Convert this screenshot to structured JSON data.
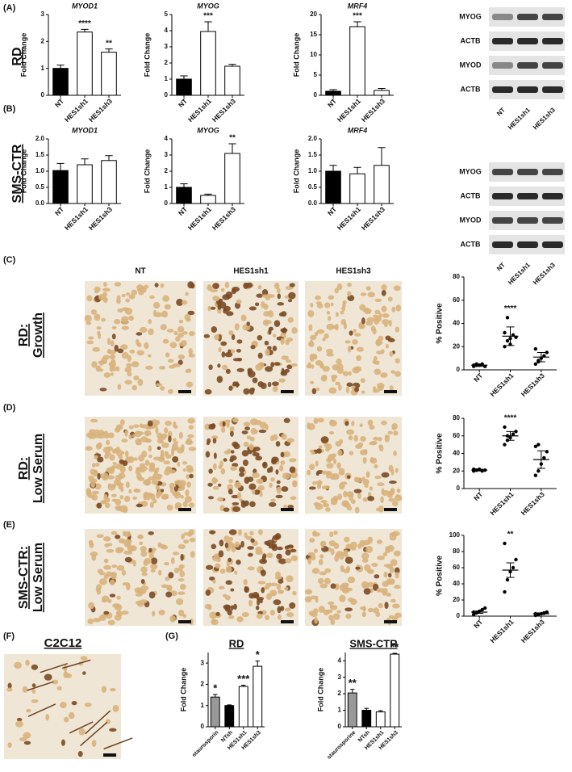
{
  "panel_labels": [
    "(A)",
    "(B)",
    "(C)",
    "(D)",
    "(E)",
    "(F)",
    "(G)"
  ],
  "row_labels": [
    [
      "RD"
    ],
    [
      "SMS-CTR"
    ],
    [
      "RD:",
      "Growth"
    ],
    [
      "RD:",
      "Low Serum"
    ],
    [
      "SMS-CTR:",
      "Low Serum"
    ],
    [
      "C2C12"
    ]
  ],
  "column_headers": [
    "NT",
    "HES1sh1",
    "HES1sh3"
  ],
  "blots": [
    {
      "labels": [
        "MYOG",
        "ACTB",
        "MYOD",
        "ACTB"
      ],
      "lanes": [
        "NT",
        "HES1sh1",
        "HES1sh3"
      ]
    },
    {
      "labels": [
        "MYOG",
        "ACTB",
        "MYOD",
        "ACTB"
      ],
      "lanes": [
        "NT",
        "HES1sh1",
        "HES1sh3"
      ]
    }
  ],
  "chart_data": [
    {
      "type": "bar",
      "title": "MYOD1",
      "ylabel": "Fold Change",
      "categories": [
        "NT",
        "HES1sh1",
        "HES1sh3"
      ],
      "values": [
        1.0,
        2.35,
        1.6
      ],
      "errors": [
        0.12,
        0.1,
        0.12
      ],
      "annotations": [
        null,
        "****",
        "**"
      ],
      "colors": [
        "#000000",
        "#ffffff",
        "#ffffff"
      ],
      "ylim": [
        0,
        3
      ],
      "yticks": [
        0,
        1,
        2,
        3
      ]
    },
    {
      "type": "bar",
      "title": "MYOG",
      "ylabel": "Fold Change",
      "categories": [
        "NT",
        "HES1sh1",
        "HES1sh3"
      ],
      "values": [
        1.0,
        3.95,
        1.8
      ],
      "errors": [
        0.2,
        0.6,
        0.12
      ],
      "annotations": [
        null,
        "***",
        null
      ],
      "colors": [
        "#000000",
        "#ffffff",
        "#ffffff"
      ],
      "ylim": [
        0,
        5
      ],
      "yticks": [
        0,
        1,
        2,
        3,
        4,
        5
      ]
    },
    {
      "type": "bar",
      "title": "MRF4",
      "ylabel": "Fold Change",
      "categories": [
        "NT",
        "HES1sh1",
        "HES1sh3"
      ],
      "values": [
        1.0,
        17,
        1.2
      ],
      "errors": [
        0.4,
        1.2,
        0.5
      ],
      "annotations": [
        null,
        "***",
        null
      ],
      "colors": [
        "#000000",
        "#ffffff",
        "#ffffff"
      ],
      "ylim": [
        0,
        20
      ],
      "yticks": [
        0,
        5,
        10,
        15,
        20
      ]
    },
    {
      "type": "bar",
      "title": "MYOD1",
      "ylabel": "Fold Change",
      "categories": [
        "NT",
        "HES1sh1",
        "HES1sh3"
      ],
      "values": [
        1.02,
        1.2,
        1.33
      ],
      "errors": [
        0.22,
        0.18,
        0.15
      ],
      "annotations": [
        null,
        null,
        null
      ],
      "colors": [
        "#000000",
        "#ffffff",
        "#ffffff"
      ],
      "ylim": [
        0,
        2
      ],
      "yticks": [
        {
          "value": 0,
          "label": "0.0"
        },
        {
          "value": 0.5,
          "label": "0.5"
        },
        {
          "value": 1,
          "label": "1.0"
        },
        {
          "value": 1.5,
          "label": "1.5"
        },
        {
          "value": 2,
          "label": "2.0"
        }
      ]
    },
    {
      "type": "bar",
      "title": "MYOG",
      "ylabel": "Fold Change",
      "categories": [
        "NT",
        "HES1sh1",
        "HES1sh3"
      ],
      "values": [
        1.0,
        0.5,
        3.1
      ],
      "errors": [
        0.22,
        0.08,
        0.6
      ],
      "annotations": [
        null,
        null,
        "**"
      ],
      "colors": [
        "#000000",
        "#ffffff",
        "#ffffff"
      ],
      "ylim": [
        0,
        4
      ],
      "yticks": [
        0,
        1,
        2,
        3,
        4
      ]
    },
    {
      "type": "bar",
      "title": "MRF4",
      "ylabel": "Fold Change",
      "categories": [
        "NT",
        "HES1sh1",
        "HES1sh3"
      ],
      "values": [
        1.0,
        0.92,
        1.18
      ],
      "errors": [
        0.18,
        0.2,
        0.55
      ],
      "annotations": [
        null,
        null,
        null
      ],
      "colors": [
        "#000000",
        "#ffffff",
        "#ffffff"
      ],
      "ylim": [
        0,
        2
      ],
      "yticks": [
        {
          "value": 0,
          "label": "0.0"
        },
        {
          "value": 0.5,
          "label": "0.5"
        },
        {
          "value": 1,
          "label": "1.0"
        },
        {
          "value": 1.5,
          "label": "1.5"
        },
        {
          "value": 2,
          "label": "2.0"
        }
      ]
    },
    {
      "type": "dotplot",
      "ylabel": "% Positive",
      "categories": [
        "NT",
        "HES1sh1",
        "HES1sh3"
      ],
      "points": [
        [
          3,
          4,
          4,
          5,
          3,
          4,
          5
        ],
        [
          20,
          25,
          27,
          30,
          28,
          32,
          45,
          22
        ],
        [
          5,
          8,
          10,
          12,
          15,
          18,
          7
        ]
      ],
      "means": [
        4,
        29,
        11
      ],
      "errors": [
        1,
        8,
        4
      ],
      "annotations": [
        null,
        "****",
        null
      ],
      "ylim": [
        0,
        80
      ],
      "yticks": [
        0,
        20,
        40,
        60,
        80
      ]
    },
    {
      "type": "dotplot",
      "ylabel": "% Positive",
      "categories": [
        "NT",
        "HES1sh1",
        "HES1sh3"
      ],
      "points": [
        [
          20,
          21,
          22,
          20,
          21,
          22,
          21
        ],
        [
          50,
          55,
          58,
          62,
          65,
          70,
          60
        ],
        [
          15,
          20,
          28,
          35,
          42,
          48,
          50
        ]
      ],
      "means": [
        21,
        60,
        33
      ],
      "errors": [
        1,
        5,
        10
      ],
      "annotations": [
        null,
        "****",
        null
      ],
      "ylim": [
        0,
        80
      ],
      "yticks": [
        0,
        20,
        40,
        60,
        80
      ]
    },
    {
      "type": "dotplot",
      "ylabel": "% Positive",
      "categories": [
        "NT",
        "HES1sh1",
        "HES1sh3"
      ],
      "points": [
        [
          2,
          4,
          6,
          8,
          10,
          5
        ],
        [
          30,
          45,
          55,
          60,
          70,
          90
        ],
        [
          1,
          2,
          3,
          4,
          5,
          3
        ]
      ],
      "means": [
        5,
        57,
        3
      ],
      "errors": [
        1.5,
        9,
        1
      ],
      "annotations": [
        null,
        "**",
        null
      ],
      "ylim": [
        0,
        100
      ],
      "yticks": [
        0,
        20,
        40,
        60,
        80,
        100
      ]
    },
    {
      "type": "bar",
      "title": "RD",
      "ylabel": "Fold Change",
      "categories": [
        "staurosporin",
        "NTsh",
        "HES1sh1",
        "HES1sh3"
      ],
      "values": [
        1.4,
        1.0,
        1.9,
        2.85
      ],
      "errors": [
        0.12,
        0.03,
        0.06,
        0.25
      ],
      "annotations": [
        "*",
        null,
        "***",
        "*"
      ],
      "colors": [
        "#999999",
        "#000000",
        "#ffffff",
        "#ffffff"
      ],
      "ylim": [
        0,
        3.5
      ],
      "yticks": [
        0,
        1,
        2,
        3
      ]
    },
    {
      "type": "bar",
      "title": "SMS-CTR",
      "ylabel": "Fold Change",
      "categories": [
        "staurosporine",
        "NTsh",
        "HES1sh1",
        "HES1sh3"
      ],
      "values": [
        2.05,
        1.0,
        0.9,
        4.4
      ],
      "errors": [
        0.22,
        0.12,
        0.08,
        0.05
      ],
      "annotations": [
        "**",
        null,
        null,
        "**"
      ],
      "colors": [
        "#999999",
        "#000000",
        "#ffffff",
        "#ffffff"
      ],
      "ylim": [
        0,
        4.5
      ],
      "yticks": [
        0,
        1,
        2,
        3,
        4
      ]
    }
  ]
}
